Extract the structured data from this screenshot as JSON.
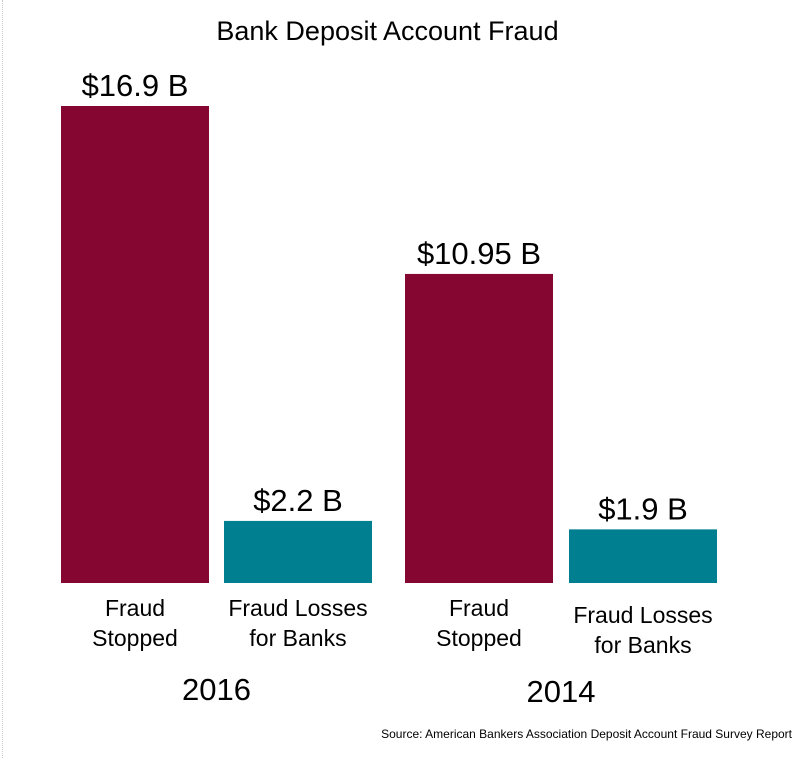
{
  "chart_data": {
    "type": "bar",
    "title": "Bank Deposit Account Fraud",
    "groups": [
      {
        "label": "2016",
        "bars": [
          {
            "category": "Fraud Stopped",
            "category_lines": [
              "Fraud",
              "Stopped"
            ],
            "value": 16.9,
            "label": "$16.9 B",
            "color": "#860632"
          },
          {
            "category": "Fraud Losses for Banks",
            "category_lines": [
              "Fraud Losses",
              "for Banks"
            ],
            "value": 2.2,
            "label": "$2.2 B",
            "color": "#007f91"
          }
        ]
      },
      {
        "label": "2014",
        "bars": [
          {
            "category": "Fraud Stopped",
            "category_lines": [
              "Fraud",
              "Stopped"
            ],
            "value": 10.95,
            "label": "$10.95 B",
            "color": "#860632"
          },
          {
            "category": "Fraud Losses for Banks",
            "category_lines": [
              "Fraud Losses",
              "for Banks"
            ],
            "value": 1.9,
            "label": "$1.9 B",
            "color": "#007f91"
          }
        ]
      }
    ],
    "unit": "billion USD",
    "ylim": [
      0,
      16.9
    ],
    "grid": false,
    "legend": "none",
    "source": "Source: American Bankers Association Deposit Account Fraud Survey Report"
  }
}
